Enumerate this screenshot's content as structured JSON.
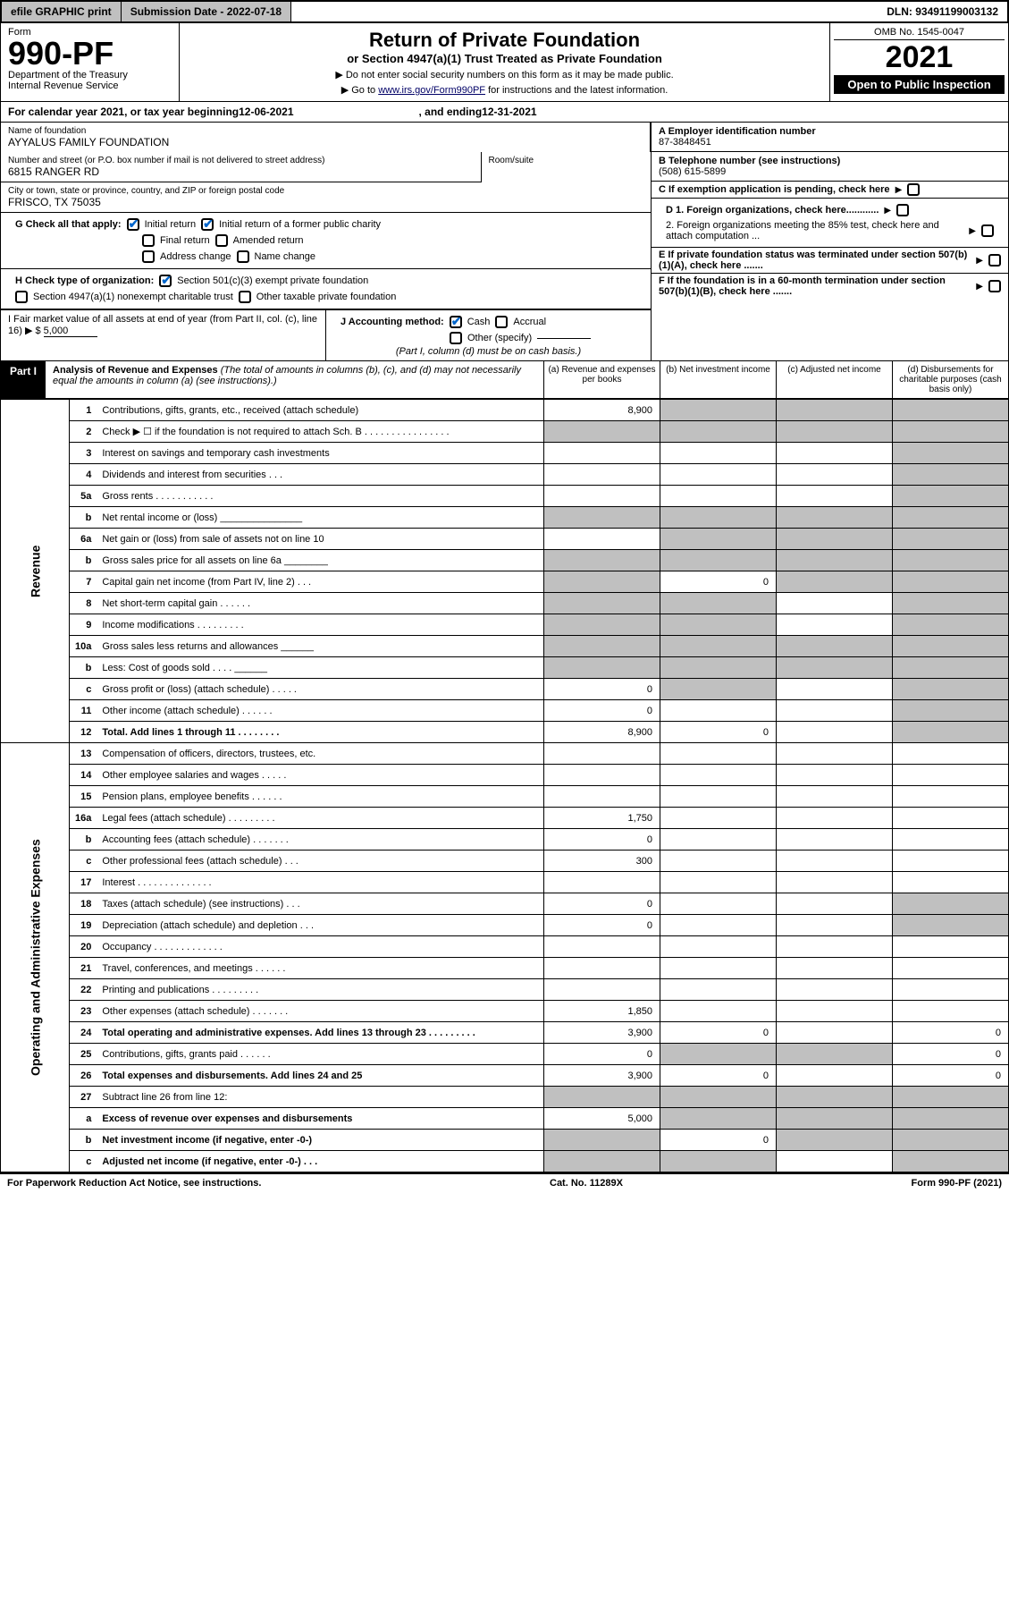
{
  "topbar": {
    "efile": "efile GRAPHIC print",
    "subdate_lbl": "Submission Date - ",
    "subdate": "2022-07-18",
    "dln_lbl": "DLN: ",
    "dln": "93491199003132"
  },
  "header": {
    "form": "Form",
    "formno": "990-PF",
    "dept": "Department of the Treasury",
    "irs": "Internal Revenue Service",
    "title": "Return of Private Foundation",
    "subtitle": "or Section 4947(a)(1) Trust Treated as Private Foundation",
    "note1": "▶ Do not enter social security numbers on this form as it may be made public.",
    "note2_pre": "▶ Go to ",
    "note2_link": "www.irs.gov/Form990PF",
    "note2_post": " for instructions and the latest information.",
    "omb": "OMB No. 1545-0047",
    "year": "2021",
    "open": "Open to Public Inspection"
  },
  "cal": {
    "pre": "For calendar year 2021, or tax year beginning ",
    "begin": "12-06-2021",
    "mid": ", and ending ",
    "end": "12-31-2021"
  },
  "info": {
    "name_lbl": "Name of foundation",
    "name": "AYYALUS FAMILY FOUNDATION",
    "addr_lbl": "Number and street (or P.O. box number if mail is not delivered to street address)",
    "addr": "6815 RANGER RD",
    "room_lbl": "Room/suite",
    "city_lbl": "City or town, state or province, country, and ZIP or foreign postal code",
    "city": "FRISCO, TX  75035",
    "A_lbl": "A Employer identification number",
    "A": "87-3848451",
    "B_lbl": "B Telephone number (see instructions)",
    "B": "(508) 615-5899",
    "C": "C If exemption application is pending, check here",
    "D1": "D 1. Foreign organizations, check here............",
    "D2": "2. Foreign organizations meeting the 85% test, check here and attach computation ...",
    "E": "E  If private foundation status was terminated under section 507(b)(1)(A), check here .......",
    "F": "F  If the foundation is in a 60-month termination under section 507(b)(1)(B), check here .......",
    "G_lbl": "G Check all that apply:",
    "G_opts": [
      "Initial return",
      "Initial return of a former public charity",
      "Final return",
      "Amended return",
      "Address change",
      "Name change"
    ],
    "H_lbl": "H Check type of organization:",
    "H_opts": [
      "Section 501(c)(3) exempt private foundation",
      "Section 4947(a)(1) nonexempt charitable trust",
      "Other taxable private foundation"
    ],
    "I_lbl": "I Fair market value of all assets at end of year (from Part II, col. (c), line 16) ▶ $",
    "I_val": "5,000",
    "J_lbl": "J Accounting method:",
    "J_opts": [
      "Cash",
      "Accrual",
      "Other (specify)"
    ],
    "J_note": "(Part I, column (d) must be on cash basis.)"
  },
  "part1": {
    "label": "Part I",
    "title": "Analysis of Revenue and Expenses",
    "note": "(The total of amounts in columns (b), (c), and (d) may not necessarily equal the amounts in column (a) (see instructions).)",
    "cols": [
      "(a)   Revenue and expenses per books",
      "(b)   Net investment income",
      "(c)   Adjusted net income",
      "(d)  Disbursements for charitable purposes (cash basis only)"
    ]
  },
  "sides": {
    "rev": "Revenue",
    "exp": "Operating and Administrative Expenses"
  },
  "rows": [
    {
      "n": "1",
      "d": "Contributions, gifts, grants, etc., received (attach schedule)",
      "a": "8,900",
      "grey": [
        "b",
        "c",
        "d"
      ]
    },
    {
      "n": "2",
      "d": "Check ▶ ☐ if the foundation is not required to attach Sch. B   .   .   .   .   .   .   .   .   .   .   .   .   .   .   .   .",
      "grey": [
        "a",
        "b",
        "c",
        "d"
      ]
    },
    {
      "n": "3",
      "d": "Interest on savings and temporary cash investments",
      "grey": [
        "d"
      ]
    },
    {
      "n": "4",
      "d": "Dividends and interest from securities   .   .   .",
      "grey": [
        "d"
      ]
    },
    {
      "n": "5a",
      "d": "Gross rents   .   .   .   .   .   .   .   .   .   .   .",
      "grey": [
        "d"
      ]
    },
    {
      "n": "b",
      "d": "Net rental income or (loss)   _______________",
      "grey": [
        "a",
        "b",
        "c",
        "d"
      ]
    },
    {
      "n": "6a",
      "d": "Net gain or (loss) from sale of assets not on line 10",
      "grey": [
        "b",
        "c",
        "d"
      ]
    },
    {
      "n": "b",
      "d": "Gross sales price for all assets on line 6a ________",
      "grey": [
        "a",
        "b",
        "c",
        "d"
      ]
    },
    {
      "n": "7",
      "d": "Capital gain net income (from Part IV, line 2)   .   .   .",
      "b": "0",
      "grey": [
        "a",
        "c",
        "d"
      ]
    },
    {
      "n": "8",
      "d": "Net short-term capital gain   .   .   .   .   .   .",
      "grey": [
        "a",
        "b",
        "d"
      ]
    },
    {
      "n": "9",
      "d": "Income modifications .   .   .   .   .   .   .   .   .",
      "grey": [
        "a",
        "b",
        "d"
      ]
    },
    {
      "n": "10a",
      "d": "Gross sales less returns and allowances   ______",
      "grey": [
        "a",
        "b",
        "c",
        "d"
      ]
    },
    {
      "n": "b",
      "d": "Less: Cost of goods sold   .   .   .   .   ______",
      "grey": [
        "a",
        "b",
        "c",
        "d"
      ]
    },
    {
      "n": "c",
      "d": "Gross profit or (loss) (attach schedule)   .   .   .   .   .",
      "a": "0",
      "grey": [
        "b",
        "d"
      ]
    },
    {
      "n": "11",
      "d": "Other income (attach schedule)   .   .   .   .   .   .",
      "a": "0",
      "grey": [
        "d"
      ]
    },
    {
      "n": "12",
      "d": "Total. Add lines 1 through 11   .   .   .   .   .   .   .   .",
      "a": "8,900",
      "b": "0",
      "bold": true,
      "grey": [
        "d"
      ]
    },
    {
      "n": "13",
      "d": "Compensation of officers, directors, trustees, etc."
    },
    {
      "n": "14",
      "d": "Other employee salaries and wages   .   .   .   .   ."
    },
    {
      "n": "15",
      "d": "Pension plans, employee benefits   .   .   .   .   .   ."
    },
    {
      "n": "16a",
      "d": "Legal fees (attach schedule) .   .   .   .   .   .   .   .   .",
      "a": "1,750"
    },
    {
      "n": "b",
      "d": "Accounting fees (attach schedule) .   .   .   .   .   .   .",
      "a": "0"
    },
    {
      "n": "c",
      "d": "Other professional fees (attach schedule)   .   .   .",
      "a": "300"
    },
    {
      "n": "17",
      "d": "Interest .   .   .   .   .   .   .   .   .   .   .   .   .   ."
    },
    {
      "n": "18",
      "d": "Taxes (attach schedule) (see instructions)   .   .   .",
      "a": "0",
      "grey": [
        "d"
      ]
    },
    {
      "n": "19",
      "d": "Depreciation (attach schedule) and depletion   .   .   .",
      "a": "0",
      "grey": [
        "d"
      ]
    },
    {
      "n": "20",
      "d": "Occupancy .   .   .   .   .   .   .   .   .   .   .   .   ."
    },
    {
      "n": "21",
      "d": "Travel, conferences, and meetings .   .   .   .   .   ."
    },
    {
      "n": "22",
      "d": "Printing and publications .   .   .   .   .   .   .   .   ."
    },
    {
      "n": "23",
      "d": "Other expenses (attach schedule) .   .   .   .   .   .   .",
      "a": "1,850"
    },
    {
      "n": "24",
      "d": "Total operating and administrative expenses. Add lines 13 through 23   .   .   .   .   .   .   .   .   .",
      "a": "3,900",
      "b": "0",
      "dd": "0",
      "bold": true
    },
    {
      "n": "25",
      "d": "Contributions, gifts, grants paid   .   .   .   .   .   .",
      "a": "0",
      "dd": "0",
      "grey": [
        "b",
        "c"
      ]
    },
    {
      "n": "26",
      "d": "Total expenses and disbursements. Add lines 24 and 25",
      "a": "3,900",
      "b": "0",
      "dd": "0",
      "bold": true
    },
    {
      "n": "27",
      "d": "Subtract line 26 from line 12:",
      "grey": [
        "a",
        "b",
        "c",
        "d"
      ]
    },
    {
      "n": "a",
      "d": "Excess of revenue over expenses and disbursements",
      "a": "5,000",
      "bold": true,
      "grey": [
        "b",
        "c",
        "d"
      ]
    },
    {
      "n": "b",
      "d": "Net investment income (if negative, enter -0-)",
      "b": "0",
      "bold": true,
      "grey": [
        "a",
        "c",
        "d"
      ]
    },
    {
      "n": "c",
      "d": "Adjusted net income (if negative, enter -0-)   .   .   .",
      "bold": true,
      "grey": [
        "a",
        "b",
        "d"
      ]
    }
  ],
  "footer": {
    "left": "For Paperwork Reduction Act Notice, see instructions.",
    "mid": "Cat. No. 11289X",
    "right": "Form 990-PF (2021)"
  }
}
